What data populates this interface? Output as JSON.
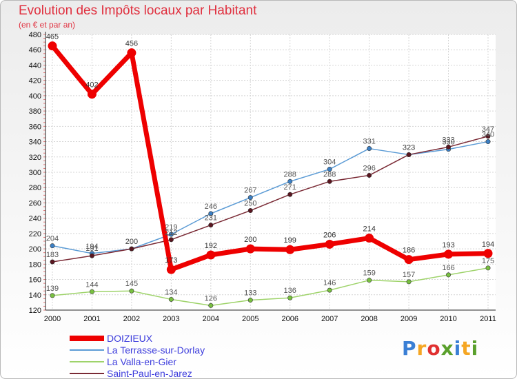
{
  "title": "Evolution des Impôts locaux par Habitant",
  "subtitle": "(en € et par an)",
  "brand": {
    "text": "Proxiti",
    "letter_colors": [
      "#3a7fd5",
      "#f5a623",
      "#e03030",
      "#5aa02c",
      "#3a7fd5",
      "#f5a623",
      "#5aa02c"
    ]
  },
  "chart_data": {
    "type": "line",
    "x": [
      "2000",
      "2001",
      "2002",
      "2003",
      "2004",
      "2005",
      "2006",
      "2007",
      "2008",
      "2009",
      "2010",
      "2011"
    ],
    "ylim": [
      120,
      480
    ],
    "yticks": [
      120,
      140,
      160,
      180,
      200,
      220,
      240,
      260,
      280,
      300,
      320,
      340,
      360,
      380,
      400,
      420,
      440,
      460,
      480
    ],
    "grid": true,
    "legend_position": "bottom-left",
    "series": [
      {
        "name": "La Terrasse-sur-Dorlay",
        "color": "#5b9bd5",
        "marker": "#3b7fc4",
        "values": [
          204,
          194,
          200,
          219,
          246,
          267,
          288,
          304,
          331,
          323,
          330,
          340
        ],
        "labels": [
          "204",
          "194",
          "200",
          "219",
          "246",
          "267",
          "288",
          "304",
          "331",
          "323",
          "330",
          "340"
        ]
      },
      {
        "name": "Saint-Paul-en-Jarez",
        "color": "#7a2a35",
        "marker": "#5a1620",
        "values": [
          183,
          191,
          200,
          212,
          231,
          250,
          271,
          288,
          296,
          323,
          333,
          347
        ],
        "labels": [
          "183",
          "191",
          "200",
          "212",
          "231",
          "250",
          "271",
          "288",
          "296",
          "323",
          "333",
          "347"
        ]
      },
      {
        "name": "La Valla-en-Gier",
        "color": "#9ed36a",
        "marker": "#78c040",
        "values": [
          139,
          144,
          145,
          134,
          126,
          133,
          136,
          146,
          159,
          157,
          166,
          175
        ],
        "labels": [
          "139",
          "144",
          "145",
          "134",
          "126",
          "133",
          "136",
          "146",
          "159",
          "157",
          "166",
          "175"
        ]
      },
      {
        "name": "DOIZIEUX",
        "color": "#ee0000",
        "marker": "#ee0000",
        "values": [
          465,
          402,
          456,
          173,
          192,
          200,
          199,
          206,
          214,
          186,
          193,
          194
        ],
        "labels": [
          "465",
          "402",
          "456",
          "173",
          "192",
          "200",
          "199",
          "206",
          "214",
          "186",
          "193",
          "194"
        ]
      }
    ],
    "legend_order": [
      "DOIZIEUX",
      "La Terrasse-sur-Dorlay",
      "La Valla-en-Gier",
      "Saint-Paul-en-Jarez"
    ]
  }
}
